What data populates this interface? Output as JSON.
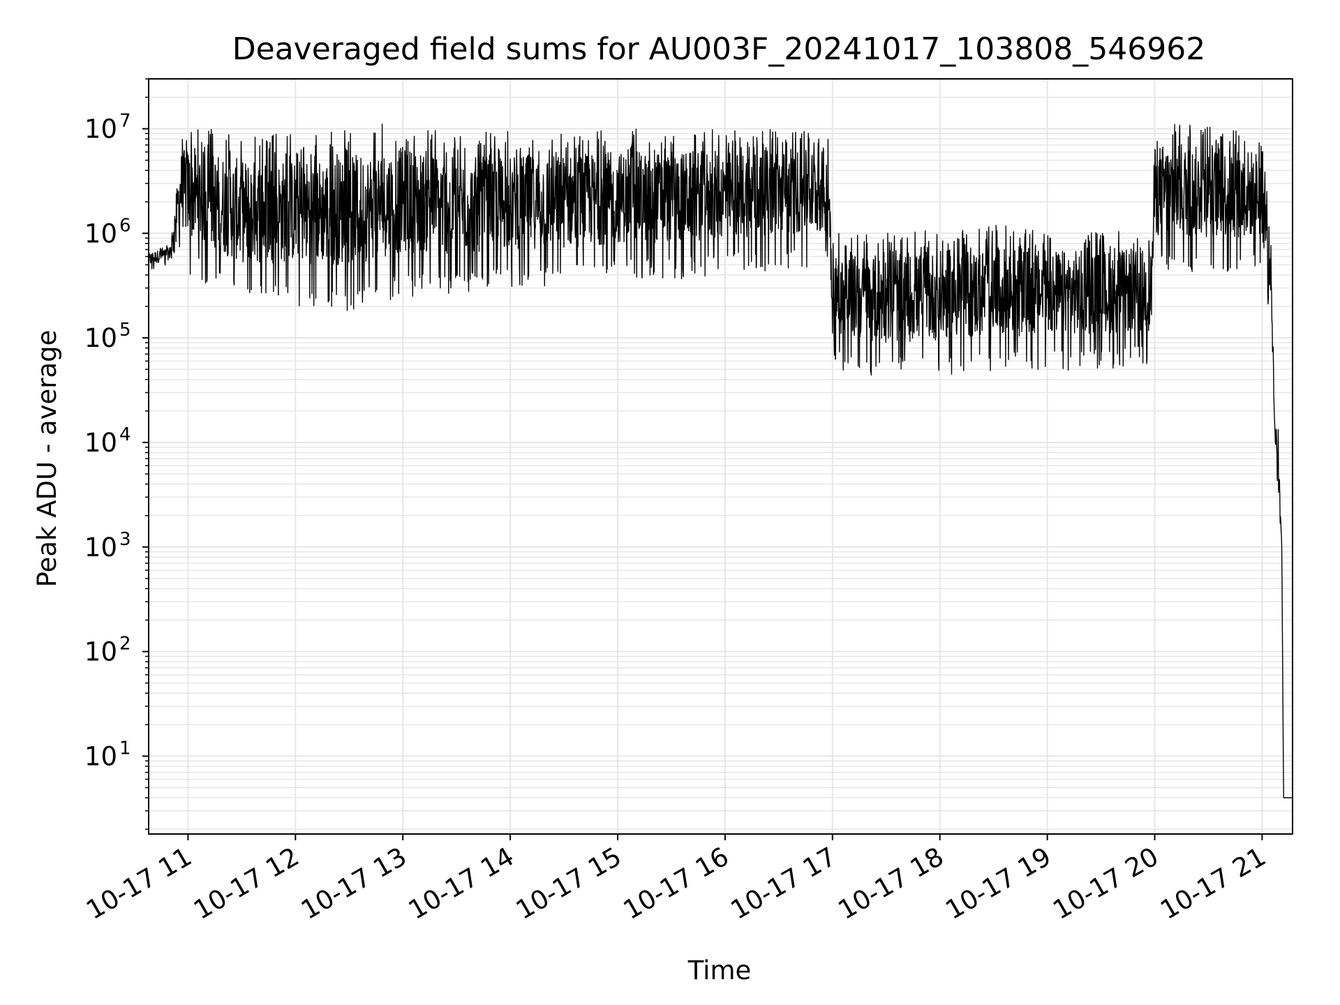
{
  "chart_data": {
    "type": "line",
    "title": "Deaveraged field sums for AU003F_20241017_103808_546962",
    "xlabel": "Time",
    "ylabel": "Peak ADU - average",
    "yscale": "log",
    "ylim": [
      1.8,
      30000000
    ],
    "xlim": [
      "2024-10-17 10:38",
      "2024-10-17 21:17"
    ],
    "grid": true,
    "line_color": "#000000",
    "grid_color": "#e6e6e6",
    "x_ticks": [
      {
        "value": "2024-10-17 11:00",
        "label": "10-17 11"
      },
      {
        "value": "2024-10-17 12:00",
        "label": "10-17 12"
      },
      {
        "value": "2024-10-17 13:00",
        "label": "10-17 13"
      },
      {
        "value": "2024-10-17 14:00",
        "label": "10-17 14"
      },
      {
        "value": "2024-10-17 15:00",
        "label": "10-17 15"
      },
      {
        "value": "2024-10-17 16:00",
        "label": "10-17 16"
      },
      {
        "value": "2024-10-17 17:00",
        "label": "10-17 17"
      },
      {
        "value": "2024-10-17 18:00",
        "label": "10-17 18"
      },
      {
        "value": "2024-10-17 19:00",
        "label": "10-17 19"
      },
      {
        "value": "2024-10-17 20:00",
        "label": "10-17 20"
      },
      {
        "value": "2024-10-17 21:00",
        "label": "10-17 21"
      }
    ],
    "y_ticks": [
      {
        "value": 10,
        "base": "10",
        "exp": "1"
      },
      {
        "value": 100,
        "base": "10",
        "exp": "2"
      },
      {
        "value": 1000,
        "base": "10",
        "exp": "3"
      },
      {
        "value": 10000,
        "base": "10",
        "exp": "4"
      },
      {
        "value": 100000,
        "base": "10",
        "exp": "5"
      },
      {
        "value": 1000000,
        "base": "10",
        "exp": "6"
      },
      {
        "value": 10000000,
        "base": "10",
        "exp": "7"
      }
    ],
    "series": [
      {
        "x": [
          "2024-10-17 10:38",
          "2024-10-17 10:45",
          "2024-10-17 10:50",
          "2024-10-17 10:53",
          "2024-10-17 10:56",
          "2024-10-17 11:00",
          "2024-10-17 11:30",
          "2024-10-17 12:00",
          "2024-10-17 12:30",
          "2024-10-17 13:00",
          "2024-10-17 13:30",
          "2024-10-17 14:00",
          "2024-10-17 14:30",
          "2024-10-17 15:00",
          "2024-10-17 15:30",
          "2024-10-17 16:00",
          "2024-10-17 16:30",
          "2024-10-17 16:58",
          "2024-10-17 17:00",
          "2024-10-17 17:30",
          "2024-10-17 18:00",
          "2024-10-17 18:30",
          "2024-10-17 19:00",
          "2024-10-17 19:30",
          "2024-10-17 19:58",
          "2024-10-17 20:00",
          "2024-10-17 20:30",
          "2024-10-17 21:00",
          "2024-10-17 21:05",
          "2024-10-17 21:07",
          "2024-10-17 21:09",
          "2024-10-17 21:11",
          "2024-10-17 21:12",
          "2024-10-17 21:17"
        ],
        "low": [
          430000,
          480000,
          500000,
          700000,
          600000,
          400000,
          200000,
          200000,
          180000,
          250000,
          250000,
          300000,
          300000,
          350000,
          350000,
          400000,
          450000,
          450000,
          50000,
          40000,
          42000,
          45000,
          48000,
          50000,
          55000,
          400000,
          400000,
          400000,
          150000,
          10000,
          3000,
          1000,
          4,
          4
        ],
        "high": [
          700000,
          750000,
          800000,
          2500000,
          9000000,
          11000000,
          9000000,
          9000000,
          10000000,
          12000000,
          9000000,
          9500000,
          9500000,
          10000000,
          10000000,
          10000000,
          10000000,
          10000000,
          1000000,
          1000000,
          1100000,
          1200000,
          1100000,
          1100000,
          1100000,
          12000000,
          11000000,
          10000000,
          1000000,
          20000,
          15000,
          1000,
          4,
          4
        ]
      }
    ]
  }
}
